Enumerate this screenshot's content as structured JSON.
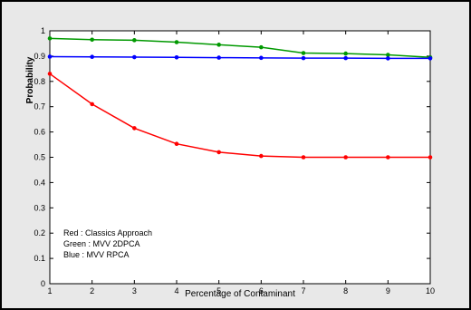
{
  "chart_data": {
    "type": "line",
    "title": "",
    "xlabel": "Percentage of Contaminant",
    "ylabel": "Probability",
    "xlim": [
      1,
      10
    ],
    "ylim": [
      0,
      1
    ],
    "x": [
      1,
      2,
      3,
      4,
      5,
      6,
      7,
      8,
      9,
      10
    ],
    "xticks": [
      "1",
      "2",
      "3",
      "4",
      "5",
      "6",
      "7",
      "8",
      "9",
      "10"
    ],
    "yticks": [
      "0",
      "0.1",
      "0.2",
      "0.3",
      "0.4",
      "0.5",
      "0.6",
      "0.7",
      "0.8",
      "0.9",
      "1"
    ],
    "grid": false,
    "series": [
      {
        "color": "#ff0000",
        "values": [
          0.83,
          0.71,
          0.615,
          0.553,
          0.52,
          0.505,
          0.5,
          0.5,
          0.5,
          0.5
        ]
      },
      {
        "color": "#009900",
        "values": [
          0.97,
          0.965,
          0.963,
          0.955,
          0.945,
          0.935,
          0.912,
          0.91,
          0.905,
          0.895
        ]
      },
      {
        "color": "#0000ff",
        "values": [
          0.898,
          0.897,
          0.896,
          0.895,
          0.894,
          0.893,
          0.892,
          0.892,
          0.891,
          0.891
        ]
      }
    ],
    "annotations": [
      "Red   : Classics Approach",
      "Green : MVV 2DPCA",
      "Blue   : MVV  RPCA"
    ]
  }
}
